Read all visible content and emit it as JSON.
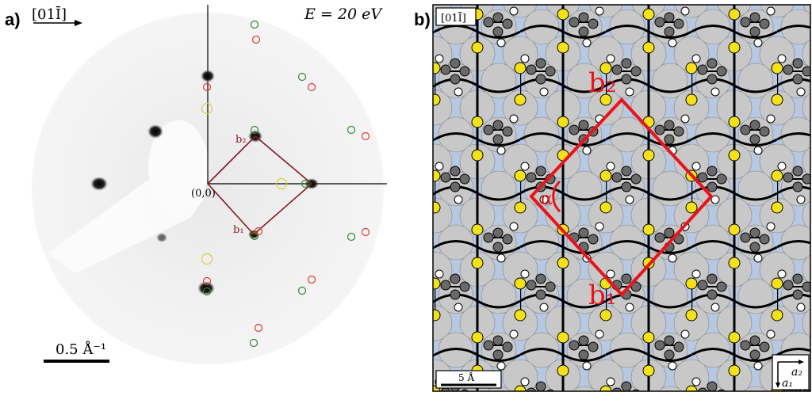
{
  "panel_a": {
    "label": "a)",
    "direction": "[01Ī]",
    "energy_label": "E = 20 eV",
    "origin_label": "(0,0)",
    "b1_label": "b₁",
    "b2_label": "b₂",
    "scale_label": "0.5 Å⁻¹",
    "colors": {
      "cell": "#8b1a1a",
      "sim_a": "#2e8b2e",
      "sim_b": "#e03a2a",
      "sim_c": "#d8d040"
    }
  },
  "panel_b": {
    "label": "b)",
    "direction": "[01Ī]",
    "b1_label": "b₁",
    "b2_label": "b₂",
    "alpha_label": "α",
    "scale_label": "5 Å",
    "a1_label": "a₁",
    "a2_label": "a₂",
    "colors": {
      "cell": "#e8141a",
      "sulfur": "#f5e11a",
      "carbon": "#6a6a6a",
      "hydrogen": "#ffffff",
      "substrate": "#c8c8c8",
      "hollow": "#b7c8e2"
    }
  }
}
